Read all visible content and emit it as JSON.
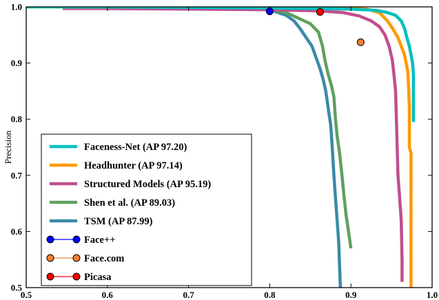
{
  "chart_data": {
    "type": "line",
    "title": "",
    "xlabel": "",
    "ylabel": "Precision",
    "xlim": [
      0.5,
      1.0
    ],
    "ylim": [
      0.5,
      1.0
    ],
    "x_ticks": [
      "0.5",
      "0.6",
      "0.7",
      "0.8",
      "0.9",
      "1.0"
    ],
    "y_ticks": [
      "0.5",
      "0.6",
      "0.7",
      "0.8",
      "0.9",
      "1.0"
    ],
    "grid": false,
    "legend_placement": "lower-left",
    "series": [
      {
        "name": "Faceness-Net (AP 97.20)",
        "color": "#00bfbf",
        "kind": "line",
        "points": [
          [
            0.5,
            1.0
          ],
          [
            0.6,
            1.0
          ],
          [
            0.7,
            0.999
          ],
          [
            0.8,
            0.998
          ],
          [
            0.86,
            0.997
          ],
          [
            0.9,
            0.996
          ],
          [
            0.93,
            0.994
          ],
          [
            0.945,
            0.99
          ],
          [
            0.955,
            0.985
          ],
          [
            0.962,
            0.975
          ],
          [
            0.966,
            0.962
          ],
          [
            0.969,
            0.945
          ],
          [
            0.972,
            0.93
          ],
          [
            0.974,
            0.915
          ],
          [
            0.976,
            0.9
          ],
          [
            0.977,
            0.88
          ],
          [
            0.977,
            0.85
          ],
          [
            0.977,
            0.795
          ]
        ]
      },
      {
        "name": "Headhunter (AP 97.14)",
        "color": "#ff9900",
        "kind": "line",
        "points": [
          [
            0.5,
            1.0
          ],
          [
            0.7,
            1.0
          ],
          [
            0.85,
            0.999
          ],
          [
            0.9,
            0.998
          ],
          [
            0.92,
            0.996
          ],
          [
            0.935,
            0.99
          ],
          [
            0.945,
            0.975
          ],
          [
            0.952,
            0.96
          ],
          [
            0.958,
            0.945
          ],
          [
            0.962,
            0.93
          ],
          [
            0.966,
            0.915
          ],
          [
            0.968,
            0.9
          ],
          [
            0.97,
            0.885
          ],
          [
            0.971,
            0.86
          ],
          [
            0.972,
            0.82
          ],
          [
            0.972,
            0.75
          ],
          [
            0.974,
            0.74
          ],
          [
            0.974,
            0.6
          ],
          [
            0.974,
            0.5
          ]
        ]
      },
      {
        "name": "Structured Models (AP 95.19)",
        "color": "#bf4f8f",
        "kind": "line",
        "points": [
          [
            0.545,
            0.997
          ],
          [
            0.6,
            0.997
          ],
          [
            0.7,
            0.996
          ],
          [
            0.8,
            0.995
          ],
          [
            0.86,
            0.993
          ],
          [
            0.89,
            0.99
          ],
          [
            0.91,
            0.984
          ],
          [
            0.925,
            0.975
          ],
          [
            0.935,
            0.965
          ],
          [
            0.942,
            0.95
          ],
          [
            0.947,
            0.93
          ],
          [
            0.951,
            0.905
          ],
          [
            0.953,
            0.88
          ],
          [
            0.955,
            0.85
          ],
          [
            0.956,
            0.8
          ],
          [
            0.957,
            0.75
          ],
          [
            0.958,
            0.7
          ],
          [
            0.96,
            0.66
          ],
          [
            0.962,
            0.62
          ],
          [
            0.963,
            0.55
          ],
          [
            0.963,
            0.51
          ]
        ]
      },
      {
        "name": "Shen et al. (AP 89.03)",
        "color": "#5fa05f",
        "kind": "line",
        "points": [
          [
            0.6,
            0.998
          ],
          [
            0.7,
            0.997
          ],
          [
            0.8,
            0.996
          ],
          [
            0.82,
            0.99
          ],
          [
            0.835,
            0.98
          ],
          [
            0.85,
            0.97
          ],
          [
            0.86,
            0.955
          ],
          [
            0.865,
            0.93
          ],
          [
            0.868,
            0.905
          ],
          [
            0.872,
            0.88
          ],
          [
            0.876,
            0.86
          ],
          [
            0.879,
            0.84
          ],
          [
            0.881,
            0.8
          ],
          [
            0.883,
            0.77
          ],
          [
            0.886,
            0.74
          ],
          [
            0.889,
            0.7
          ],
          [
            0.891,
            0.67
          ],
          [
            0.894,
            0.63
          ],
          [
            0.897,
            0.6
          ],
          [
            0.9,
            0.57
          ]
        ]
      },
      {
        "name": "TSM (AP 87.99)",
        "color": "#3a8aa6",
        "kind": "line",
        "points": [
          [
            0.6,
            0.997
          ],
          [
            0.7,
            0.997
          ],
          [
            0.8,
            0.995
          ],
          [
            0.82,
            0.985
          ],
          [
            0.83,
            0.975
          ],
          [
            0.838,
            0.96
          ],
          [
            0.845,
            0.945
          ],
          [
            0.852,
            0.93
          ],
          [
            0.857,
            0.91
          ],
          [
            0.862,
            0.89
          ],
          [
            0.866,
            0.87
          ],
          [
            0.869,
            0.85
          ],
          [
            0.872,
            0.82
          ],
          [
            0.875,
            0.79
          ],
          [
            0.877,
            0.75
          ],
          [
            0.879,
            0.7
          ],
          [
            0.881,
            0.66
          ],
          [
            0.883,
            0.62
          ],
          [
            0.885,
            0.58
          ],
          [
            0.886,
            0.54
          ],
          [
            0.887,
            0.5
          ]
        ]
      },
      {
        "name": "Face++",
        "color": "#0000ff",
        "kind": "marker",
        "points": [
          [
            0.8,
            0.992
          ]
        ]
      },
      {
        "name": "Face.com",
        "color": "#f08030",
        "kind": "marker",
        "points": [
          [
            0.912,
            0.937
          ]
        ]
      },
      {
        "name": "Picasa",
        "color": "#ff0000",
        "kind": "marker",
        "points": [
          [
            0.862,
            0.991
          ]
        ]
      }
    ]
  }
}
